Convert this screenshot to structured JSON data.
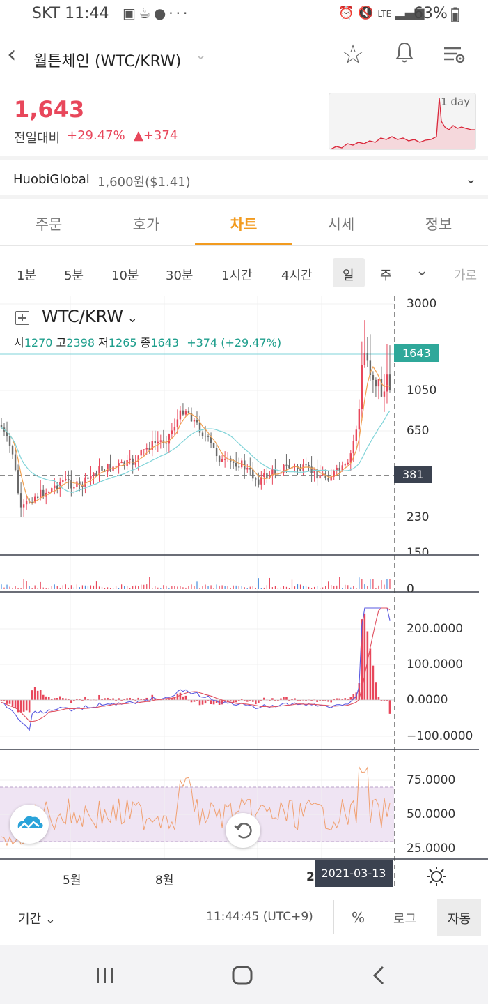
{
  "status_bar": {
    "carrier_time": "SKT 11:44",
    "notification_icons": [
      "image-icon",
      "coffee-icon",
      "talk-icon",
      "more-icon"
    ],
    "battery_text": "63%"
  },
  "header": {
    "title": "월튼체인 (WTC/KRW)"
  },
  "price_block": {
    "price": "1,643",
    "change_label": "전일대비",
    "change_percent": "+29.47%",
    "change_amount": "▲+374",
    "mini_chart_label": "1 day"
  },
  "exchange": {
    "name": "HuobiGlobal",
    "price": "1,600원($1.41)"
  },
  "tabs": [
    {
      "label": "주문"
    },
    {
      "label": "호가"
    },
    {
      "label": "차트",
      "active": true
    },
    {
      "label": "시세"
    },
    {
      "label": "정보"
    }
  ],
  "timeframes": [
    {
      "label": "1분"
    },
    {
      "label": "5분"
    },
    {
      "label": "10분"
    },
    {
      "label": "30분"
    },
    {
      "label": "1시간"
    },
    {
      "label": "4시간"
    },
    {
      "label": "일",
      "selected": true
    },
    {
      "label": "주"
    }
  ],
  "timeframe_extra": "가로",
  "chart": {
    "symbol": "WTC/KRW",
    "ohlc": {
      "open_label": "시",
      "open": "1270",
      "high_label": "고",
      "high": "2398",
      "low_label": "저",
      "low": "1265",
      "close_label": "종",
      "close": "1643",
      "change": "+374 (+29.47%)"
    },
    "price_axis": [
      "3000",
      "1050",
      "650",
      "230",
      "150"
    ],
    "current_price_tag": "1643",
    "crosshair_price_tag": "381",
    "volume_axis": [
      "0"
    ],
    "macd_axis": [
      "200.0000",
      "100.0000",
      "0.0000",
      "−100.0000"
    ],
    "rsi_axis": [
      "75.0000",
      "50.0000",
      "25.0000"
    ],
    "time_axis": [
      "5월",
      "8월",
      "2"
    ],
    "crosshair_date": "2021-03-13",
    "colors": {
      "up": "#e8475b",
      "ma_orange": "#f0a050",
      "ma_cyan": "#7fd3d8",
      "macd_blue": "#5a5ae0",
      "macd_red": "#e05060",
      "rsi_band": "#efe4f3",
      "price_tag": "#2fa89a",
      "crosshair_tag": "#3b4250"
    }
  },
  "footer": {
    "period_label": "기간",
    "clock": "11:44:45 (UTC+9)",
    "percent": "%",
    "log": "로그",
    "auto": "자동"
  }
}
